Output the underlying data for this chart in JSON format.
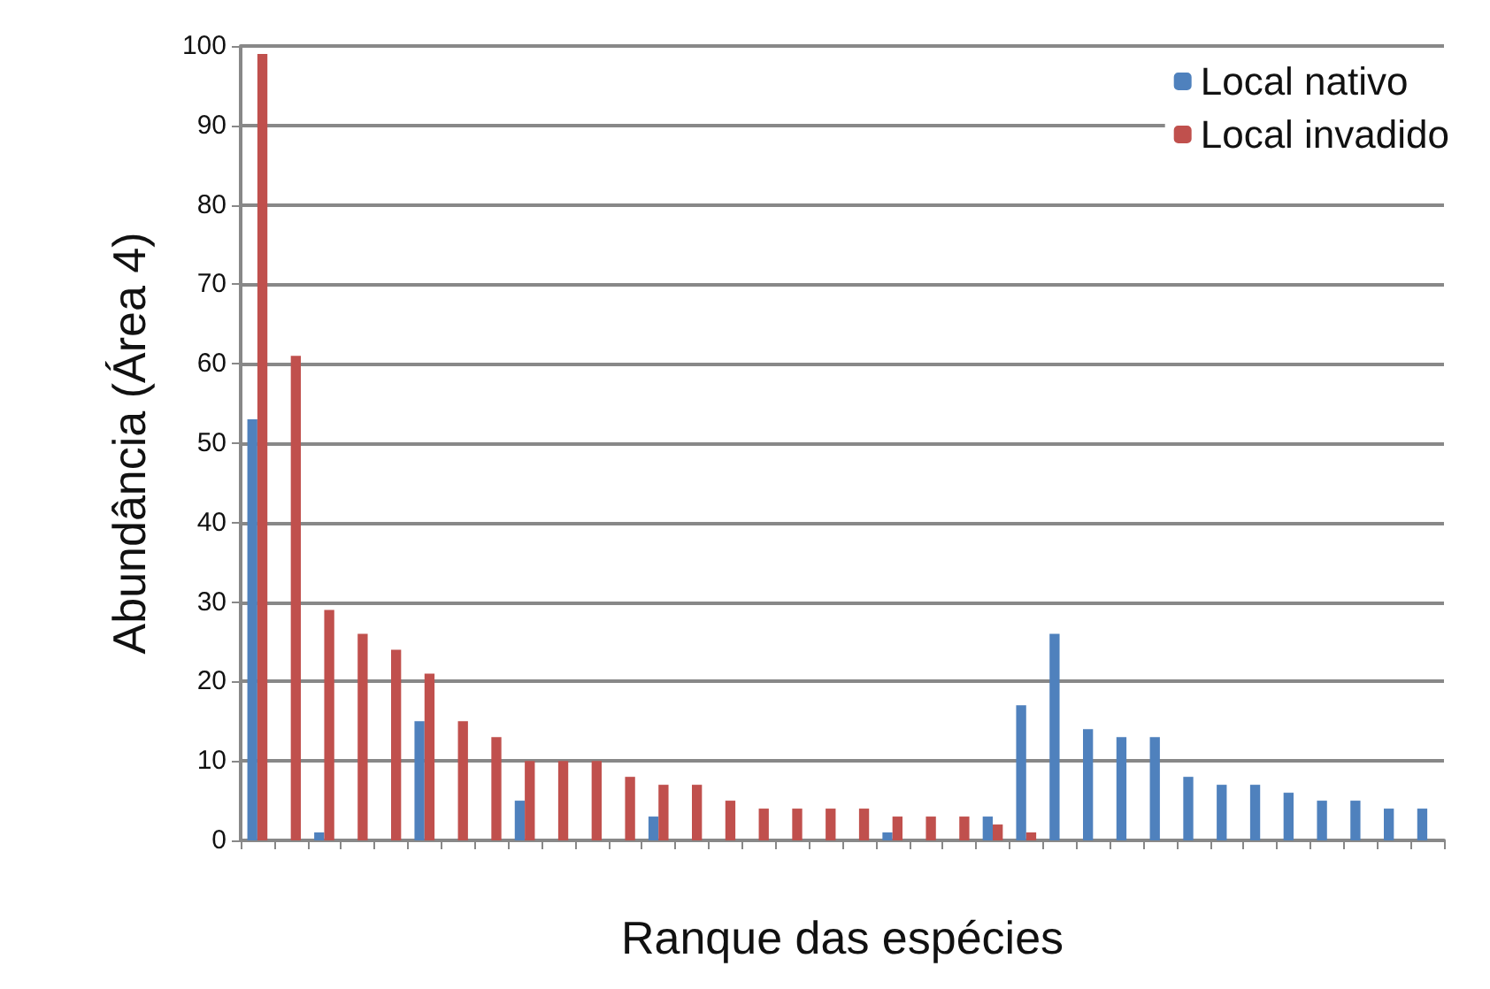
{
  "chart_data": {
    "type": "bar",
    "xlabel": "Ranque das espécies",
    "ylabel": "Abundância (Área 4)",
    "categories": [
      null,
      null,
      null,
      null,
      null,
      null,
      null,
      null,
      null,
      null,
      null,
      null,
      null,
      null,
      null,
      null,
      null,
      null,
      null,
      null,
      null,
      null,
      null,
      null,
      null,
      null,
      null,
      null,
      null,
      null,
      null,
      null,
      null,
      null,
      null,
      null
    ],
    "series": [
      {
        "name": "Local nativo",
        "color": "#4f81bd",
        "values": [
          53,
          0,
          1,
          0,
          0,
          15,
          0,
          0,
          5,
          0,
          0,
          0,
          3,
          0,
          0,
          0,
          0,
          0,
          0,
          1,
          0,
          0,
          3,
          17,
          26,
          14,
          13,
          13,
          8,
          7,
          7,
          6,
          5,
          5,
          4,
          4
        ]
      },
      {
        "name": "Local invadido",
        "color": "#c0504d",
        "values": [
          99,
          61,
          29,
          26,
          24,
          21,
          15,
          13,
          10,
          10,
          10,
          8,
          7,
          7,
          5,
          4,
          4,
          4,
          4,
          3,
          3,
          3,
          2,
          1,
          0,
          0,
          0,
          0,
          0,
          0,
          0,
          0,
          0,
          0,
          0,
          0
        ]
      }
    ],
    "ylim": [
      0,
      100
    ],
    "yticks": [
      0,
      10,
      20,
      30,
      40,
      50,
      60,
      70,
      80,
      90,
      100
    ],
    "grid": "y",
    "legend": "top right"
  }
}
